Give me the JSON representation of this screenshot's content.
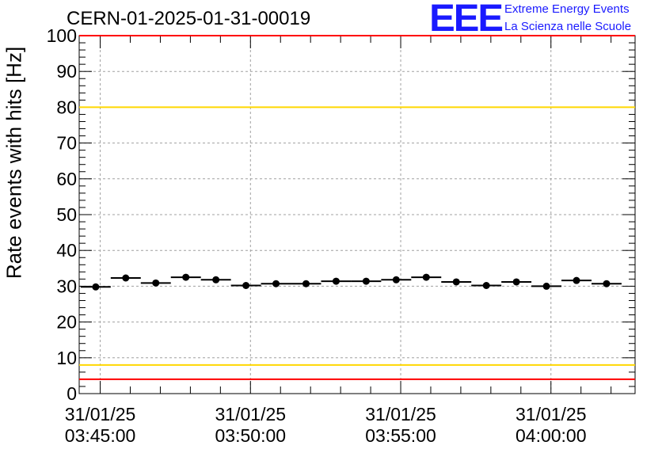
{
  "header": {
    "title": "CERN-01-2025-01-31-00019",
    "logo_text": "EEE",
    "logo_line1": "Extreme Energy Events",
    "logo_line2": "La Scienza nelle Scuole"
  },
  "colors": {
    "logo": "#1a1aff",
    "limit_red": "#ff0000",
    "limit_yellow": "#ffd700",
    "grid": "#a0a0a0",
    "marker": "#000000"
  },
  "chart_data": {
    "type": "scatter",
    "title": "CERN-01-2025-01-31-00019",
    "xlabel": "",
    "ylabel": "Rate events with hits [Hz]",
    "ylim": [
      0,
      100
    ],
    "xlim_minutes": [
      -0.7,
      17.8
    ],
    "grid": true,
    "x_tick_labels": [
      {
        "minute": 0,
        "date": "31/01/25",
        "time": "03:45:00"
      },
      {
        "minute": 5,
        "date": "31/01/25",
        "time": "03:50:00"
      },
      {
        "minute": 10,
        "date": "31/01/25",
        "time": "03:55:00"
      },
      {
        "minute": 15,
        "date": "31/01/25",
        "time": "04:00:00"
      }
    ],
    "y_ticks": [
      0,
      10,
      20,
      30,
      40,
      50,
      60,
      70,
      80,
      90,
      100
    ],
    "bin_width_minutes": 1,
    "series": [
      {
        "name": "rate",
        "x_minutes": [
          -0.15,
          0.85,
          1.85,
          2.85,
          3.85,
          4.85,
          5.85,
          6.85,
          7.85,
          8.85,
          9.85,
          10.85,
          11.85,
          12.85,
          13.85,
          14.85,
          15.85,
          16.85
        ],
        "values": [
          29.8,
          32.3,
          30.9,
          32.5,
          31.8,
          30.2,
          30.7,
          30.7,
          31.4,
          31.4,
          31.8,
          32.5,
          31.2,
          30.2,
          31.2,
          30.0,
          31.6,
          30.7
        ]
      }
    ],
    "reference_lines": [
      {
        "name": "upper-limit-red",
        "value": 100,
        "color": "red"
      },
      {
        "name": "upper-warning-yellow",
        "value": 80,
        "color": "yellow"
      },
      {
        "name": "lower-warning-yellow",
        "value": 8,
        "color": "yellow"
      },
      {
        "name": "lower-limit-red",
        "value": 4,
        "color": "red"
      }
    ]
  }
}
